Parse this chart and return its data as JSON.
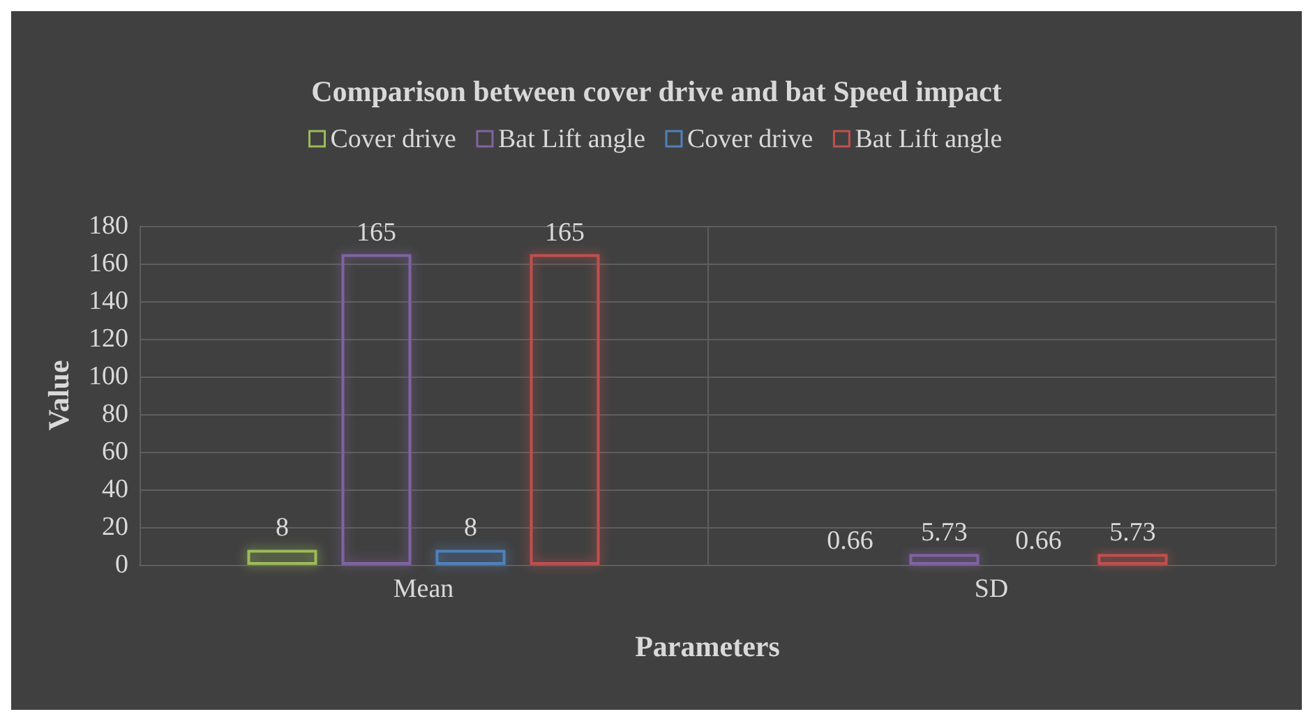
{
  "chart_data": {
    "type": "bar",
    "title": "Comparison between cover drive and bat Speed impact",
    "xlabel": "Parameters",
    "ylabel": "Value",
    "categories": [
      "Mean",
      "SD"
    ],
    "series": [
      {
        "name": "Cover drive",
        "color": "#9bbb59",
        "values": [
          8,
          0.66
        ]
      },
      {
        "name": "Bat Lift angle",
        "color": "#8064a2",
        "values": [
          165,
          5.73
        ]
      },
      {
        "name": "Cover drive",
        "color": "#4f81bd",
        "values": [
          8,
          0.66
        ]
      },
      {
        "name": "Bat Lift angle",
        "color": "#c0504d",
        "values": [
          165,
          5.73
        ]
      }
    ],
    "ylim": [
      0,
      180
    ],
    "yticks": [
      0,
      20,
      40,
      60,
      80,
      100,
      120,
      140,
      160,
      180
    ],
    "grid": true,
    "legend": "top",
    "data_labels": true
  }
}
